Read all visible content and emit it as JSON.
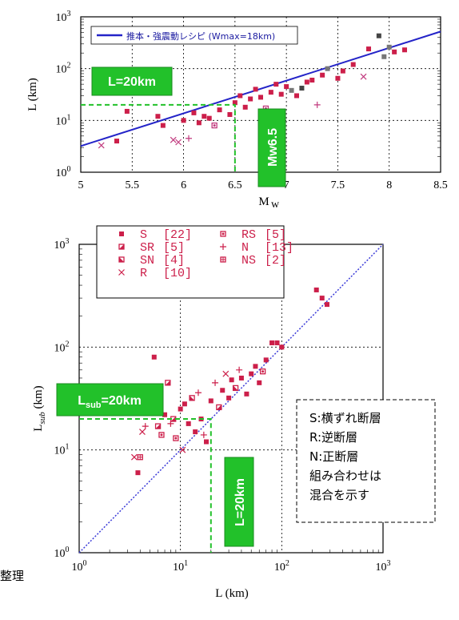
{
  "chart_data": [
    {
      "type": "scatter",
      "xlabel": "M_w",
      "ylabel": "L (km)",
      "xlim": [
        5,
        8.5
      ],
      "ylim_log10": [
        0,
        3
      ],
      "x_ticks": [
        "5",
        "5.5",
        "6",
        "6.5",
        "7",
        "7.5",
        "8",
        "8.5"
      ],
      "y_ticks": [
        "10",
        "10",
        "10",
        "10"
      ],
      "y_tick_exps": [
        "0",
        "1",
        "2",
        "3"
      ],
      "legend": "推本・強震動レシピ (Wmax=18km)",
      "recipe_line": {
        "x": [
          5,
          8.5
        ],
        "y": [
          3.2,
          520
        ]
      },
      "annotations": {
        "L_label": "L=20km",
        "Mw_label": "Mw6.5",
        "guide_x": 6.5,
        "guide_y": 20
      },
      "points": [
        {
          "x": 5.2,
          "y": 3.3,
          "c": "#c13a7e",
          "m": "x"
        },
        {
          "x": 5.35,
          "y": 4.0,
          "c": "#cc1f4a",
          "m": "sq"
        },
        {
          "x": 5.45,
          "y": 15,
          "c": "#cc1f4a",
          "m": "sq"
        },
        {
          "x": 5.75,
          "y": 12,
          "c": "#cc1f4a",
          "m": "sq"
        },
        {
          "x": 5.8,
          "y": 8,
          "c": "#cc1f4a",
          "m": "sq"
        },
        {
          "x": 5.9,
          "y": 4.2,
          "c": "#c13a7e",
          "m": "x"
        },
        {
          "x": 5.95,
          "y": 3.8,
          "c": "#c13a7e",
          "m": "x"
        },
        {
          "x": 6.0,
          "y": 10,
          "c": "#cc1f4a",
          "m": "sq"
        },
        {
          "x": 6.05,
          "y": 4.5,
          "c": "#c13a7e",
          "m": "plus"
        },
        {
          "x": 6.1,
          "y": 14,
          "c": "#cc1f4a",
          "m": "sq"
        },
        {
          "x": 6.15,
          "y": 9,
          "c": "#cc1f4a",
          "m": "sq"
        },
        {
          "x": 6.2,
          "y": 12,
          "c": "#cc1f4a",
          "m": "sq"
        },
        {
          "x": 6.25,
          "y": 11,
          "c": "#cc1f4a",
          "m": "sq"
        },
        {
          "x": 6.3,
          "y": 8,
          "c": "#c13a7e",
          "m": "ring"
        },
        {
          "x": 6.35,
          "y": 16,
          "c": "#cc1f4a",
          "m": "sq"
        },
        {
          "x": 6.45,
          "y": 13,
          "c": "#cc1f4a",
          "m": "sq"
        },
        {
          "x": 6.5,
          "y": 22,
          "c": "#cc1f4a",
          "m": "sq"
        },
        {
          "x": 6.55,
          "y": 30,
          "c": "#cc1f4a",
          "m": "sq"
        },
        {
          "x": 6.6,
          "y": 18,
          "c": "#cc1f4a",
          "m": "sq"
        },
        {
          "x": 6.65,
          "y": 26,
          "c": "#cc1f4a",
          "m": "sq"
        },
        {
          "x": 6.7,
          "y": 40,
          "c": "#cc1f4a",
          "m": "sq"
        },
        {
          "x": 6.75,
          "y": 28,
          "c": "#cc1f4a",
          "m": "sq"
        },
        {
          "x": 6.8,
          "y": 17,
          "c": "#c13a7e",
          "m": "ring"
        },
        {
          "x": 6.85,
          "y": 35,
          "c": "#cc1f4a",
          "m": "sq"
        },
        {
          "x": 6.9,
          "y": 50,
          "c": "#cc1f4a",
          "m": "sq"
        },
        {
          "x": 6.95,
          "y": 32,
          "c": "#cc1f4a",
          "m": "sq"
        },
        {
          "x": 7.0,
          "y": 45,
          "c": "#cc1f4a",
          "m": "sq"
        },
        {
          "x": 7.05,
          "y": 38,
          "c": "#777777",
          "m": "sq"
        },
        {
          "x": 7.1,
          "y": 30,
          "c": "#cc1f4a",
          "m": "sq"
        },
        {
          "x": 7.15,
          "y": 42,
          "c": "#444444",
          "m": "sq"
        },
        {
          "x": 7.2,
          "y": 55,
          "c": "#cc1f4a",
          "m": "sq"
        },
        {
          "x": 7.25,
          "y": 60,
          "c": "#cc1f4a",
          "m": "sq"
        },
        {
          "x": 7.3,
          "y": 20,
          "c": "#c13a7e",
          "m": "plus"
        },
        {
          "x": 7.35,
          "y": 75,
          "c": "#cc1f4a",
          "m": "sq"
        },
        {
          "x": 7.4,
          "y": 100,
          "c": "#777777",
          "m": "sq"
        },
        {
          "x": 7.5,
          "y": 65,
          "c": "#cc1f4a",
          "m": "sq"
        },
        {
          "x": 7.55,
          "y": 90,
          "c": "#cc1f4a",
          "m": "sq"
        },
        {
          "x": 7.65,
          "y": 120,
          "c": "#cc1f4a",
          "m": "sq"
        },
        {
          "x": 7.75,
          "y": 70,
          "c": "#c13a7e",
          "m": "x"
        },
        {
          "x": 7.8,
          "y": 240,
          "c": "#cc1f4a",
          "m": "sq"
        },
        {
          "x": 7.9,
          "y": 430,
          "c": "#444444",
          "m": "sq"
        },
        {
          "x": 7.95,
          "y": 170,
          "c": "#777777",
          "m": "sq"
        },
        {
          "x": 8.0,
          "y": 260,
          "c": "#777777",
          "m": "sq"
        },
        {
          "x": 8.05,
          "y": 210,
          "c": "#cc1f4a",
          "m": "sq"
        },
        {
          "x": 8.15,
          "y": 230,
          "c": "#cc1f4a",
          "m": "sq"
        }
      ]
    },
    {
      "type": "scatter",
      "xlabel": "L (km)",
      "ylabel": "L_sub (km)",
      "xlim_log10": [
        0,
        3
      ],
      "ylim_log10": [
        0,
        3
      ],
      "x_ticks": [
        "10",
        "10",
        "10",
        "10"
      ],
      "x_tick_exps": [
        "0",
        "1",
        "2",
        "3"
      ],
      "y_ticks": [
        "10",
        "10",
        "10",
        "10"
      ],
      "y_tick_exps": [
        "0",
        "1",
        "2",
        "3"
      ],
      "legend": [
        {
          "sym": "S",
          "count": "[22]",
          "marker": "sq"
        },
        {
          "sym": "SR",
          "count": "[5]",
          "marker": "half"
        },
        {
          "sym": "SN",
          "count": "[4]",
          "marker": "half2"
        },
        {
          "sym": "R",
          "count": "[10]",
          "marker": "x"
        },
        {
          "sym": "RS",
          "count": "[5]",
          "marker": "ring"
        },
        {
          "sym": "N",
          "count": "[13]",
          "marker": "plus"
        },
        {
          "sym": "NS",
          "count": "[2]",
          "marker": "grid"
        }
      ],
      "annotations": {
        "Lsub_main": "L",
        "Lsub_sub": "sub",
        "Lsub_rest": "=20km",
        "L_label": "L=20km",
        "guide_x": 20,
        "guide_y": 20
      },
      "note": [
        "S:横ずれ断層",
        "R:逆断層",
        "N:正断層",
        "組み合わせは",
        "混合を示す"
      ],
      "points": [
        {
          "x": 3.5,
          "y": 8.5,
          "m": "x"
        },
        {
          "x": 3.8,
          "y": 6,
          "m": "sq"
        },
        {
          "x": 4,
          "y": 8.5,
          "m": "grid"
        },
        {
          "x": 4.2,
          "y": 15,
          "m": "x"
        },
        {
          "x": 4.5,
          "y": 17,
          "m": "plus"
        },
        {
          "x": 5,
          "y": 25,
          "m": "sq"
        },
        {
          "x": 5.5,
          "y": 80,
          "m": "sq"
        },
        {
          "x": 6,
          "y": 17,
          "m": "half"
        },
        {
          "x": 6.5,
          "y": 14,
          "m": "ring"
        },
        {
          "x": 7,
          "y": 22,
          "m": "sq"
        },
        {
          "x": 7.5,
          "y": 45,
          "m": "half"
        },
        {
          "x": 8,
          "y": 18,
          "m": "plus"
        },
        {
          "x": 8.5,
          "y": 20,
          "m": "half"
        },
        {
          "x": 9,
          "y": 13,
          "m": "ring"
        },
        {
          "x": 10,
          "y": 25,
          "m": "sq"
        },
        {
          "x": 10.5,
          "y": 10,
          "m": "x"
        },
        {
          "x": 11,
          "y": 28,
          "m": "sq"
        },
        {
          "x": 12,
          "y": 18,
          "m": "sq"
        },
        {
          "x": 13,
          "y": 32,
          "m": "half2"
        },
        {
          "x": 14,
          "y": 15,
          "m": "sq"
        },
        {
          "x": 15,
          "y": 36,
          "m": "plus"
        },
        {
          "x": 16,
          "y": 20,
          "m": "sq"
        },
        {
          "x": 17,
          "y": 14,
          "m": "plus"
        },
        {
          "x": 18,
          "y": 12,
          "m": "sq"
        },
        {
          "x": 20,
          "y": 30,
          "m": "sq"
        },
        {
          "x": 22,
          "y": 45,
          "m": "plus"
        },
        {
          "x": 24,
          "y": 26,
          "m": "half"
        },
        {
          "x": 26,
          "y": 38,
          "m": "sq"
        },
        {
          "x": 28,
          "y": 55,
          "m": "x"
        },
        {
          "x": 30,
          "y": 32,
          "m": "sq"
        },
        {
          "x": 32,
          "y": 48,
          "m": "sq"
        },
        {
          "x": 35,
          "y": 40,
          "m": "half2"
        },
        {
          "x": 38,
          "y": 60,
          "m": "plus"
        },
        {
          "x": 40,
          "y": 50,
          "m": "sq"
        },
        {
          "x": 45,
          "y": 35,
          "m": "sq"
        },
        {
          "x": 50,
          "y": 55,
          "m": "sq"
        },
        {
          "x": 55,
          "y": 65,
          "m": "sq"
        },
        {
          "x": 60,
          "y": 45,
          "m": "sq"
        },
        {
          "x": 65,
          "y": 58,
          "m": "ring"
        },
        {
          "x": 70,
          "y": 75,
          "m": "sq"
        },
        {
          "x": 80,
          "y": 110,
          "m": "sq"
        },
        {
          "x": 90,
          "y": 110,
          "m": "sq"
        },
        {
          "x": 100,
          "y": 100,
          "m": "sq"
        },
        {
          "x": 220,
          "y": 360,
          "m": "sq"
        },
        {
          "x": 250,
          "y": 300,
          "m": "sq"
        },
        {
          "x": 280,
          "y": 260,
          "m": "sq"
        }
      ]
    }
  ],
  "colors": {
    "accent": "#cc1f4a",
    "green": "#22c12a",
    "diag": "#3b3bd8"
  },
  "fragment_text": "整理"
}
